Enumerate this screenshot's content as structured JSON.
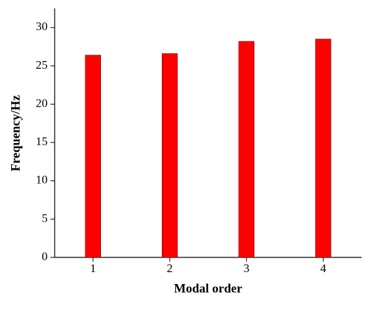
{
  "chart_data": {
    "type": "bar",
    "xlabel": "Modal order",
    "ylabel": "Frequency/Hz",
    "categories": [
      "1",
      "2",
      "3",
      "4"
    ],
    "values": [
      26.4,
      26.6,
      28.2,
      28.5
    ],
    "color": "#ff0000",
    "ylim": [
      0,
      32.5
    ],
    "yticks": [
      0,
      5,
      10,
      15,
      20,
      25,
      30
    ],
    "grid": false
  }
}
